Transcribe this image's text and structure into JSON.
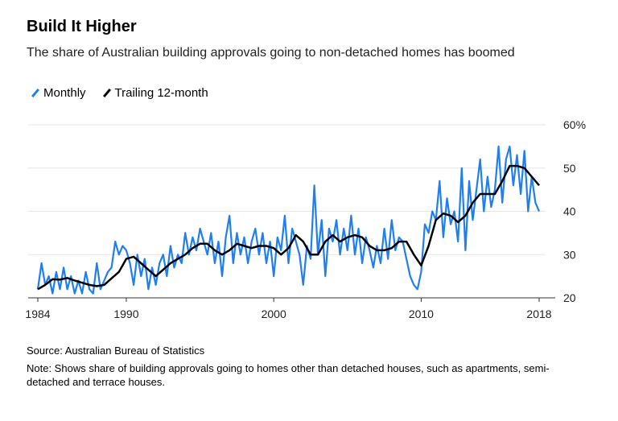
{
  "chart_data": {
    "type": "line",
    "title": "Build It Higher",
    "subtitle": "The share of Australian building approvals going to non-detached homes has boomed",
    "xlim": [
      1984,
      2018
    ],
    "ylim": [
      20,
      60
    ],
    "x_ticks": [
      "1984",
      "1990",
      "2000",
      "2010",
      "2018"
    ],
    "y_ticks": [
      "20",
      "30",
      "40",
      "50",
      "60%"
    ],
    "grid": "horizontal",
    "legend_placement": "top-left",
    "series": [
      {
        "name": "Monthly",
        "color": "#1f7ef0",
        "start": 1984,
        "step": 0.25,
        "values": [
          22,
          28,
          23,
          25,
          21,
          26,
          22,
          27,
          22,
          25,
          21,
          24,
          21,
          26,
          22,
          21,
          28,
          22,
          24,
          26,
          27,
          33,
          30,
          32,
          31,
          28,
          23,
          30,
          25,
          29,
          22,
          27,
          23,
          28,
          30,
          25,
          32,
          27,
          30,
          28,
          35,
          30,
          34,
          31,
          36,
          33,
          30,
          35,
          28,
          33,
          25,
          34,
          39,
          28,
          35,
          30,
          34,
          28,
          33,
          36,
          30,
          35,
          28,
          33,
          25,
          34,
          31,
          39,
          28,
          36,
          33,
          30,
          23,
          32,
          29,
          46,
          30,
          38,
          25,
          36,
          33,
          38,
          30,
          36,
          31,
          39,
          30,
          36,
          28,
          34,
          31,
          27,
          32,
          28,
          36,
          29,
          38,
          31,
          34,
          33,
          29,
          25,
          23,
          22,
          26,
          37,
          35,
          40,
          38,
          47,
          34,
          43,
          37,
          40,
          33,
          50,
          31,
          47,
          38,
          45,
          52,
          40,
          48,
          41,
          45,
          55,
          42,
          52,
          55,
          46,
          53,
          44,
          54,
          40,
          48,
          42,
          40
        ]
      },
      {
        "name": "Trailing 12-month",
        "color": "#000000",
        "start": 1984,
        "step": 0.5,
        "values": [
          22,
          23,
          24.3,
          24.2,
          24.6,
          24,
          23.5,
          23,
          22.7,
          23,
          24.5,
          26,
          29,
          29.5,
          28,
          26.5,
          25,
          26.5,
          28,
          29,
          30,
          31.5,
          32.5,
          32.5,
          31,
          30,
          31,
          32.5,
          32,
          31.5,
          32,
          32,
          31.5,
          30,
          31.5,
          34.5,
          33,
          30,
          30,
          33,
          34.5,
          33,
          34,
          34.5,
          34,
          32,
          31,
          31,
          31.5,
          33,
          33,
          30,
          27.5,
          32,
          38,
          39.5,
          39,
          37.5,
          39,
          42,
          44,
          44,
          44,
          47,
          50.5,
          50.5,
          50,
          48,
          46
        ]
      }
    ],
    "source": "Source: Australian Bureau of Statistics",
    "note": "Note: Shows share of building approvals going to homes other than detached houses, such as apartments, semi-detached and terrace houses."
  }
}
